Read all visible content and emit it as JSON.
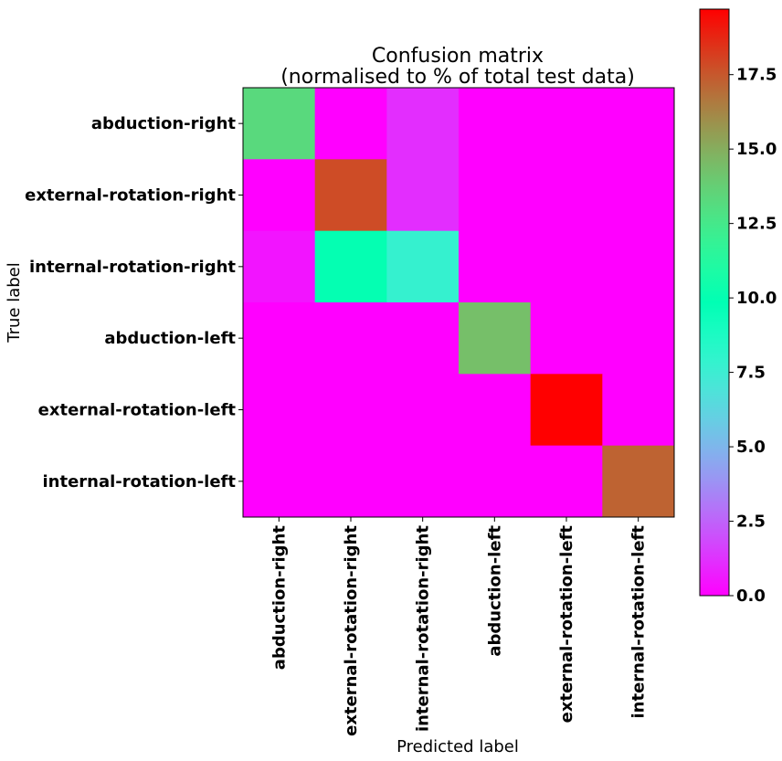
{
  "chart_data": {
    "type": "heatmap",
    "title_line1": "Confusion matrix",
    "title_line2": "(normalised to % of total test data)",
    "xlabel": "Predicted label",
    "ylabel": "True label",
    "x_categories": [
      "abduction-right",
      "external-rotation-right",
      "internal-rotation-right",
      "abduction-left",
      "external-rotation-left",
      "internal-rotation-left"
    ],
    "y_categories": [
      "abduction-right",
      "external-rotation-right",
      "internal-rotation-right",
      "abduction-left",
      "external-rotation-left",
      "internal-rotation-left"
    ],
    "values": [
      [
        13.3,
        0.0,
        1.1,
        0.0,
        0.0,
        0.0
      ],
      [
        0.0,
        17.8,
        1.1,
        0.0,
        0.0,
        0.0
      ],
      [
        0.5,
        10.0,
        7.8,
        0.0,
        0.0,
        0.0
      ],
      [
        0.0,
        0.0,
        0.0,
        14.4,
        0.0,
        0.0
      ],
      [
        0.0,
        0.0,
        0.0,
        0.0,
        19.7,
        0.0
      ],
      [
        0.0,
        0.0,
        0.0,
        0.0,
        0.0,
        17.2
      ]
    ],
    "colorbar": {
      "colormap": "rainbow",
      "min": 0.0,
      "max": 19.7,
      "ticks": [
        0.0,
        2.5,
        5.0,
        7.5,
        10.0,
        12.5,
        15.0,
        17.5
      ],
      "tick_labels": [
        "0.0",
        "2.5",
        "5.0",
        "7.5",
        "10.0",
        "12.5",
        "15.0",
        "17.5"
      ]
    }
  }
}
